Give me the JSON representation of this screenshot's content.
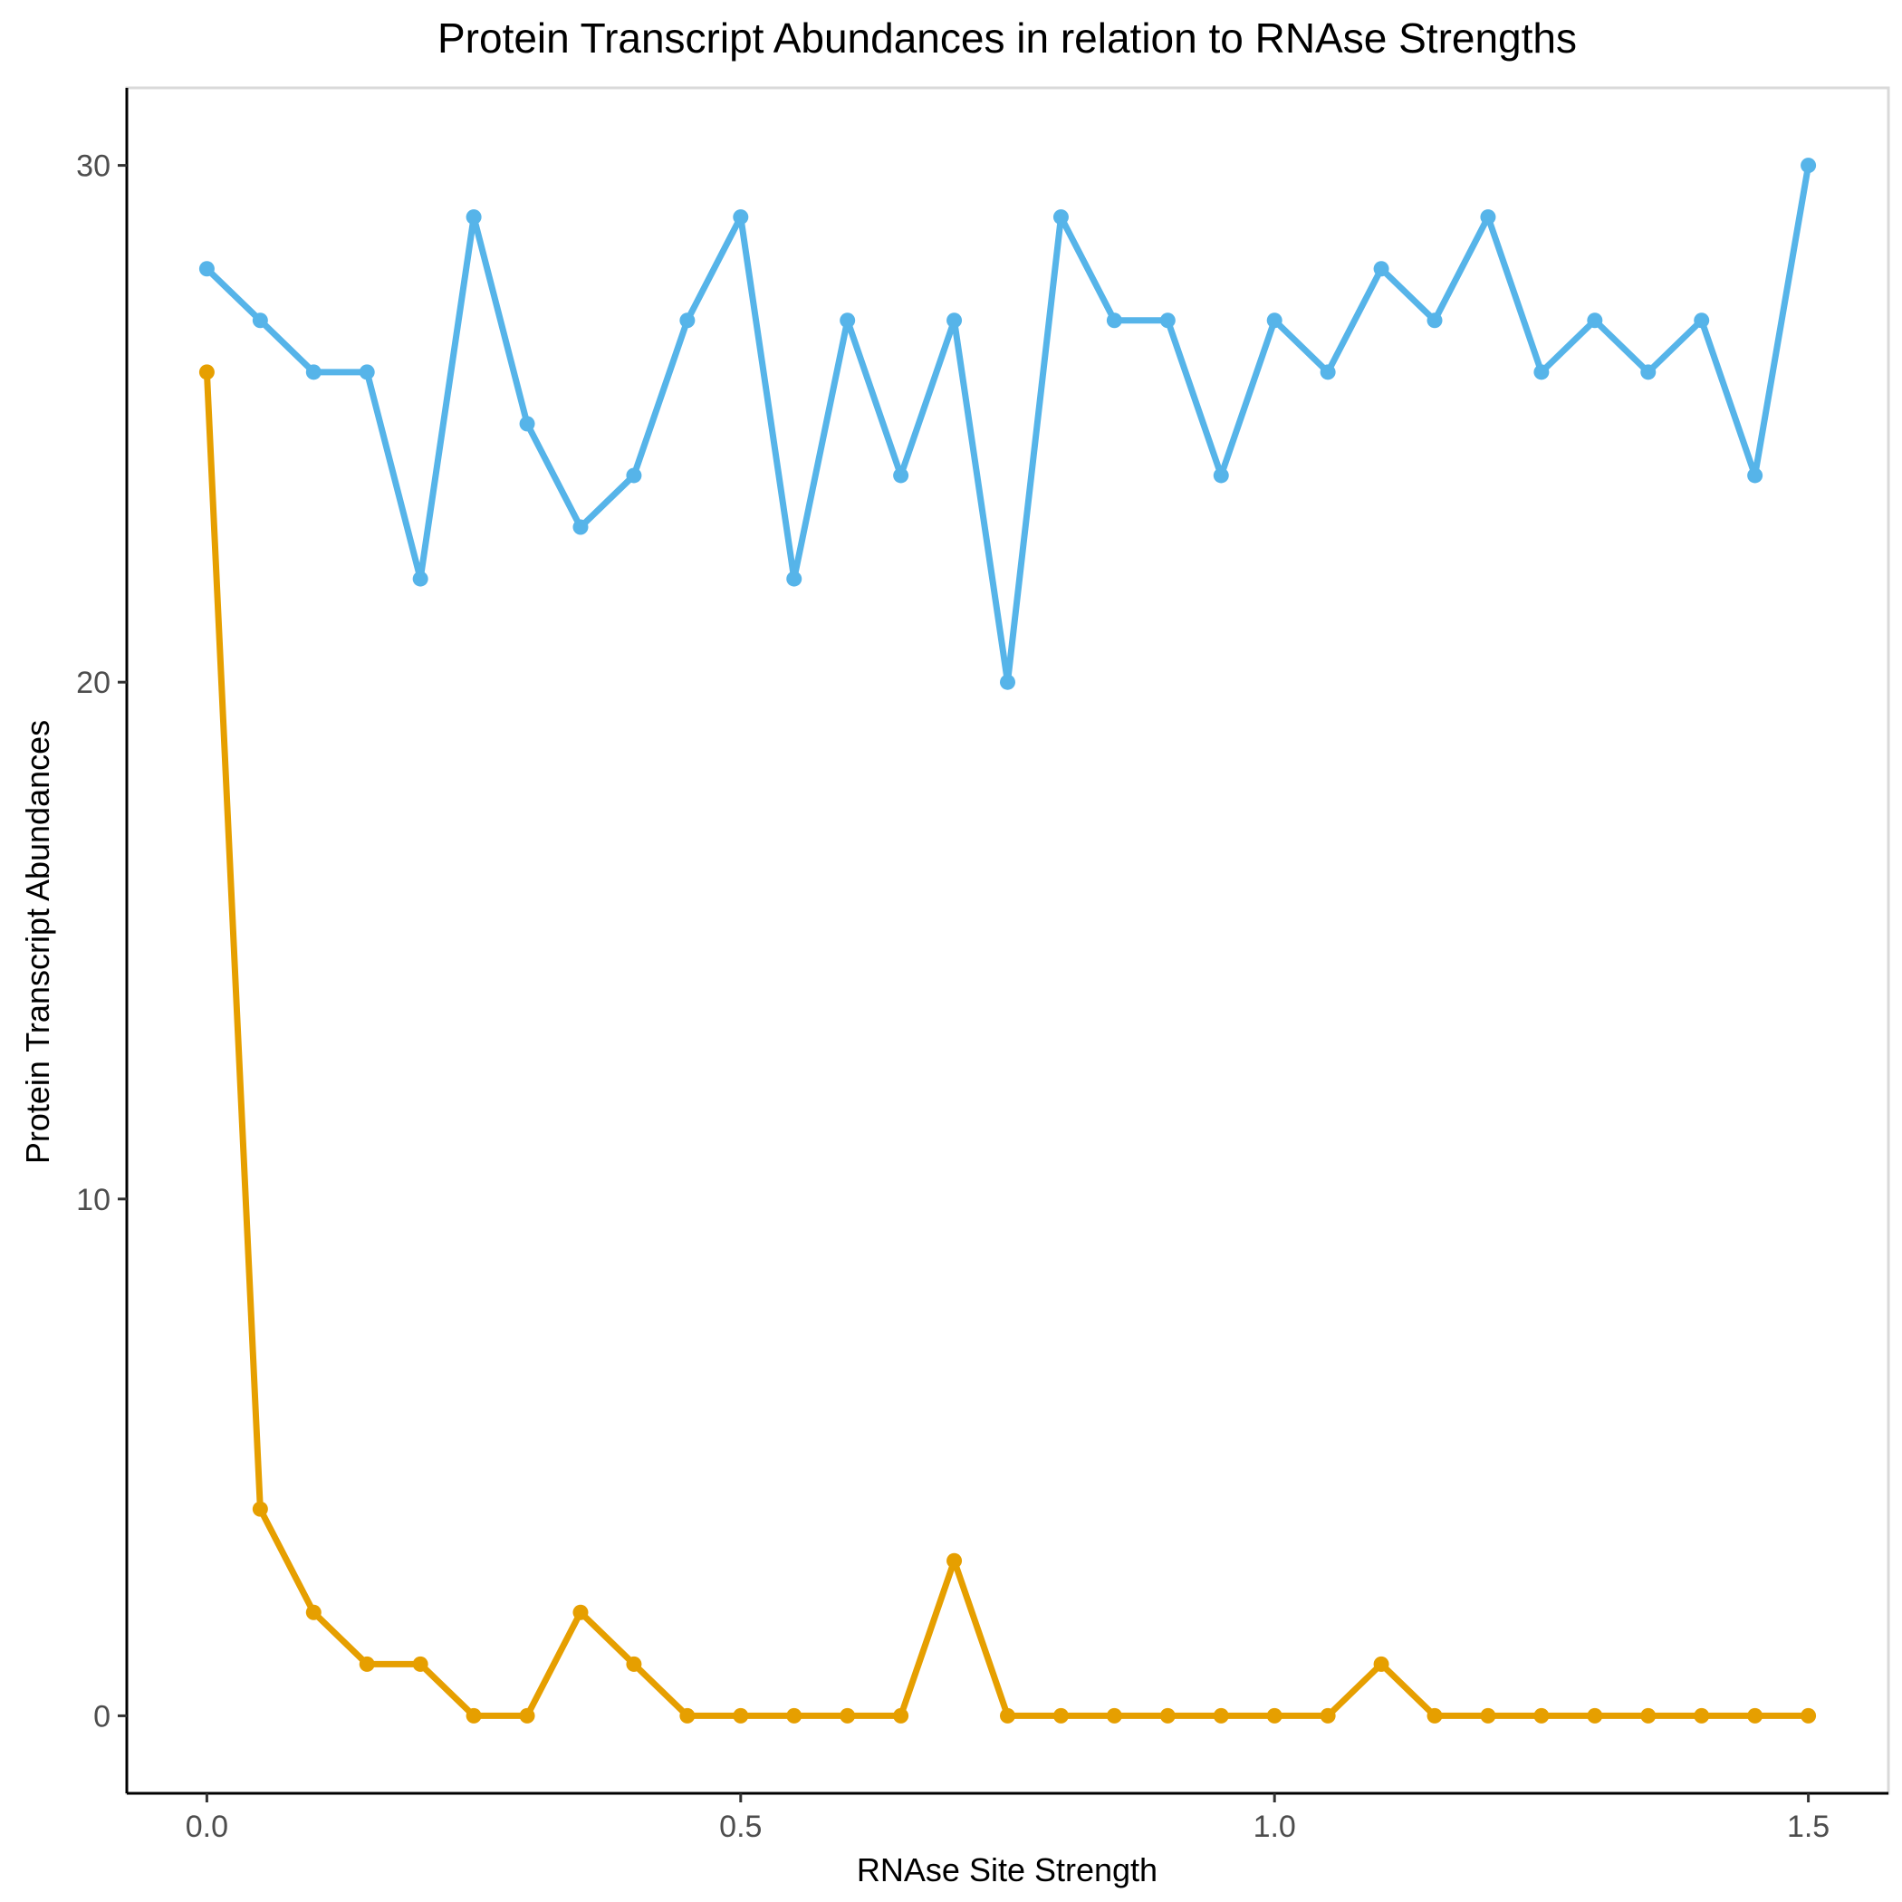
{
  "chart_data": {
    "type": "line",
    "title": "Protein Transcript Abundances in relation to RNAse Strengths",
    "xlabel": "RNAse Site Strength",
    "ylabel": "Protein Transcript Abundances",
    "xlim": [
      -0.075,
      1.575
    ],
    "ylim": [
      -1.5,
      31.5
    ],
    "xticks": [
      0.0,
      0.5,
      1.0,
      1.5
    ],
    "xtick_labels": [
      "0.0",
      "0.5",
      "1.0",
      "1.5"
    ],
    "yticks": [
      0,
      10,
      20,
      30
    ],
    "ytick_labels": [
      "0",
      "10",
      "20",
      "30"
    ],
    "grid": false,
    "legend": "none",
    "x": [
      0.0,
      0.05,
      0.1,
      0.15,
      0.2,
      0.25,
      0.3,
      0.35,
      0.4,
      0.45,
      0.5,
      0.55,
      0.6,
      0.65,
      0.7,
      0.75,
      0.8,
      0.85,
      0.9,
      0.95,
      1.0,
      1.05,
      1.1,
      1.15,
      1.2,
      1.25,
      1.3,
      1.35,
      1.4,
      1.45,
      1.5
    ],
    "series": [
      {
        "color": "#56B4E9",
        "values": [
          28,
          27,
          26,
          26,
          22,
          29,
          25,
          23,
          24,
          27,
          29,
          22,
          27,
          24,
          27,
          20,
          29,
          27,
          27,
          24,
          27,
          26,
          28,
          27,
          29,
          26,
          27,
          26,
          27,
          24,
          30
        ]
      },
      {
        "color": "#E69F00",
        "values": [
          26,
          4,
          2,
          1,
          1,
          0,
          0,
          2,
          1,
          0,
          0,
          0,
          0,
          0,
          3,
          0,
          0,
          0,
          0,
          0,
          0,
          0,
          1,
          0,
          0,
          0,
          0,
          0,
          0,
          0,
          0
        ]
      }
    ]
  }
}
